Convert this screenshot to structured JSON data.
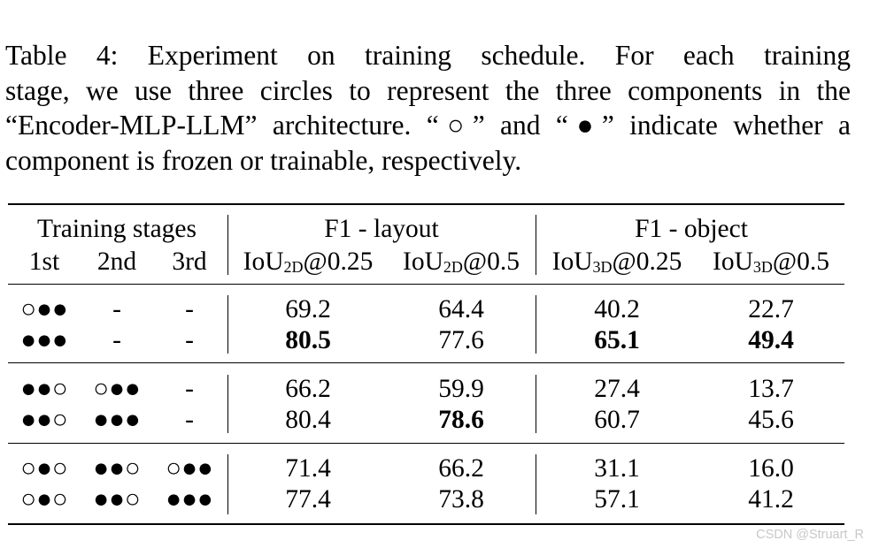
{
  "caption": {
    "line1": "Table 4:  Experiment on training schedule.  For each training",
    "line2": "stage, we use three circles to represent the three components in the",
    "line3": "“Encoder-MLP-LLM” architecture. “○” and “●” indicate whether a",
    "line4": "component is frozen or trainable, respectively."
  },
  "table": {
    "group_headers": {
      "stages": "Training stages",
      "layout": "F1 - layout",
      "object": "F1 - object"
    },
    "sub_headers": {
      "s1": "1st",
      "s2": "2nd",
      "s3": "3rd",
      "l1_pre": "IoU",
      "l1_sub": "2D",
      "l1_post": "@0.25",
      "l2_pre": "IoU",
      "l2_sub": "2D",
      "l2_post": "@0.5",
      "o1_pre": "IoU",
      "o1_sub": "3D",
      "o1_post": "@0.25",
      "o2_pre": "IoU",
      "o2_sub": "3D",
      "o2_post": "@0.5"
    },
    "rows": [
      {
        "s1": "○●●",
        "s2": "-",
        "s3": "-",
        "l25": "69.2",
        "l5": "64.4",
        "o25": "40.2",
        "o5": "22.7"
      },
      {
        "s1": "●●●",
        "s2": "-",
        "s3": "-",
        "l25": "80.5",
        "l5": "77.6",
        "o25": "65.1",
        "o5": "49.4"
      },
      {
        "s1": "●●○",
        "s2": "○●●",
        "s3": "-",
        "l25": "66.2",
        "l5": "59.9",
        "o25": "27.4",
        "o5": "13.7"
      },
      {
        "s1": "●●○",
        "s2": "●●●",
        "s3": "-",
        "l25": "80.4",
        "l5": "78.6",
        "o25": "60.7",
        "o5": "45.6"
      },
      {
        "s1": "○●○",
        "s2": "●●○",
        "s3": "○●●",
        "l25": "71.4",
        "l5": "66.2",
        "o25": "31.1",
        "o5": "16.0"
      },
      {
        "s1": "○●○",
        "s2": "●●○",
        "s3": "●●●",
        "l25": "77.4",
        "l5": "73.8",
        "o25": "57.1",
        "o5": "41.2"
      }
    ]
  },
  "watermark": "CSDN @Struart_R"
}
